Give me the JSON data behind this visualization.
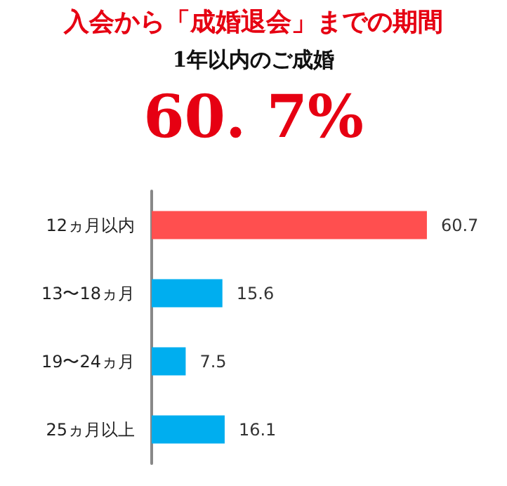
{
  "chart_data": {
    "type": "bar",
    "orientation": "horizontal",
    "title": "入会から「成婚退会」までの期間",
    "subtitle": "1年以内のご成婚",
    "annotations": [
      "60. 7%"
    ],
    "categories": [
      "12ヵ月以内",
      "13〜18ヵ月",
      "19〜24ヵ月",
      "25ヵ月以上"
    ],
    "values": [
      60.7,
      15.6,
      7.5,
      16.1
    ],
    "colors": [
      "#ff4f4f",
      "#00aeef",
      "#00aeef",
      "#00aeef"
    ],
    "data_labels": true
  }
}
